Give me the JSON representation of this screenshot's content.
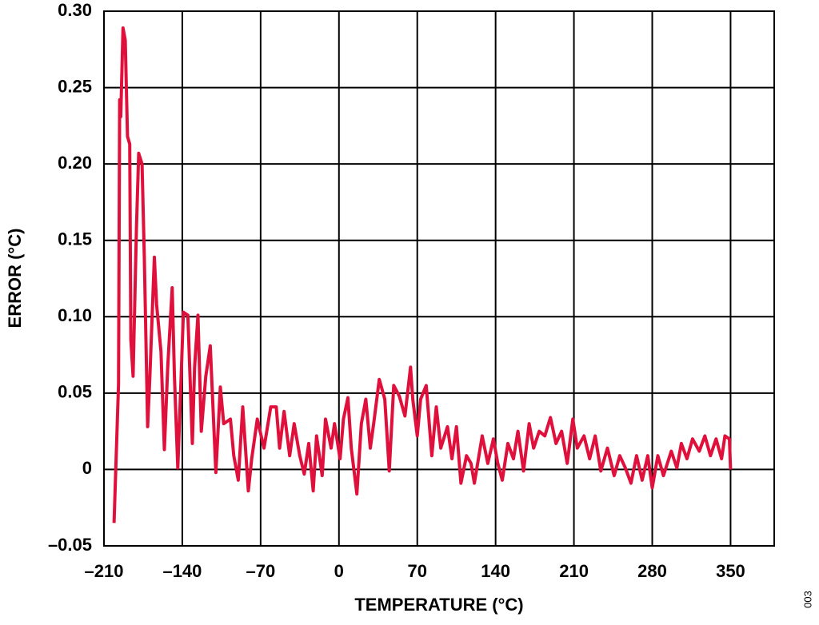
{
  "chart_data": {
    "type": "line",
    "x_label": "TEMPERATURE (°C)",
    "y_label": "ERROR (°C)",
    "annotation": "003",
    "color": "#e0103c",
    "grid": true,
    "xlim": [
      -210,
      389
    ],
    "ylim": [
      -0.05,
      0.3
    ],
    "xticks": [
      {
        "value": -210,
        "label": "–210"
      },
      {
        "value": -140,
        "label": "–140"
      },
      {
        "value": -70,
        "label": "–70"
      },
      0,
      70,
      140,
      210,
      280,
      350
    ],
    "yticks": [
      {
        "value": -0.05,
        "label": "–0.05"
      },
      0,
      0.05,
      {
        "value": 0.1,
        "label": "0.10"
      },
      0.15,
      {
        "value": 0.2,
        "label": "0.20"
      },
      0.25,
      {
        "value": 0.3,
        "label": "0.30"
      }
    ],
    "x": [
      -201,
      -197,
      -196,
      -195,
      -193,
      -191,
      -189,
      -187,
      -186,
      -184,
      -181,
      -179,
      -176,
      -174,
      -171,
      -169,
      -165,
      -163,
      -159,
      -156,
      -153,
      -149,
      -147,
      -144,
      -141,
      -139,
      -135,
      -131,
      -129,
      -126,
      -123,
      -119,
      -115,
      -110,
      -106,
      -103,
      -97,
      -94,
      -90,
      -86,
      -81,
      -78,
      -73,
      -67,
      -61,
      -56,
      -53,
      -49,
      -44,
      -40,
      -35,
      -31,
      -27,
      -23,
      -20,
      -15,
      -12,
      -7,
      -4,
      1,
      4,
      8,
      11,
      16,
      20,
      24,
      28,
      31,
      36,
      41,
      45,
      49,
      54,
      59,
      64,
      66,
      70,
      73,
      78,
      83,
      87,
      91,
      97,
      101,
      105,
      109,
      114,
      118,
      121,
      128,
      133,
      138,
      142,
      146,
      151,
      156,
      160,
      165,
      170,
      174,
      179,
      184,
      189,
      194,
      199,
      204,
      209,
      213,
      219,
      224,
      229,
      234,
      240,
      246,
      251,
      256,
      261,
      266,
      271,
      276,
      280,
      285,
      290,
      297,
      302,
      306,
      311,
      316,
      322,
      327,
      332,
      337,
      342,
      345,
      349,
      350
    ],
    "values": [
      -0.035,
      0.056,
      0.242,
      0.231,
      0.289,
      0.281,
      0.218,
      0.213,
      0.085,
      0.061,
      0.158,
      0.207,
      0.2,
      0.14,
      0.028,
      0.061,
      0.139,
      0.108,
      0.077,
      0.013,
      0.067,
      0.119,
      0.061,
      0.001,
      0.061,
      0.103,
      0.101,
      0.017,
      0.067,
      0.101,
      0.025,
      0.061,
      0.081,
      -0.002,
      0.054,
      0.03,
      0.033,
      0.009,
      -0.007,
      0.041,
      -0.014,
      0.007,
      0.033,
      0.014,
      0.041,
      0.041,
      0.014,
      0.038,
      0.009,
      0.03,
      0.009,
      -0.003,
      0.017,
      -0.014,
      0.022,
      -0.004,
      0.033,
      0.014,
      0.03,
      0.007,
      0.033,
      0.047,
      0.014,
      -0.016,
      0.03,
      0.046,
      0.014,
      0.03,
      0.059,
      0.046,
      -0.001,
      0.055,
      0.048,
      0.035,
      0.067,
      0.046,
      0.022,
      0.046,
      0.055,
      0.009,
      0.041,
      0.014,
      0.028,
      0.007,
      0.028,
      -0.009,
      0.009,
      0.004,
      -0.009,
      0.022,
      0.004,
      0.02,
      0.004,
      -0.007,
      0.017,
      0.007,
      0.025,
      -0.001,
      0.03,
      0.014,
      0.025,
      0.022,
      0.034,
      0.017,
      0.025,
      0.004,
      0.033,
      0.014,
      0.022,
      0.007,
      0.022,
      -0.001,
      0.014,
      -0.004,
      0.009,
      0.001,
      -0.009,
      0.009,
      -0.007,
      0.009,
      -0.012,
      0.009,
      -0.004,
      0.012,
      0.001,
      0.017,
      0.007,
      0.02,
      0.012,
      0.022,
      0.009,
      0.02,
      0.007,
      0.022,
      0.02,
      0
    ]
  }
}
